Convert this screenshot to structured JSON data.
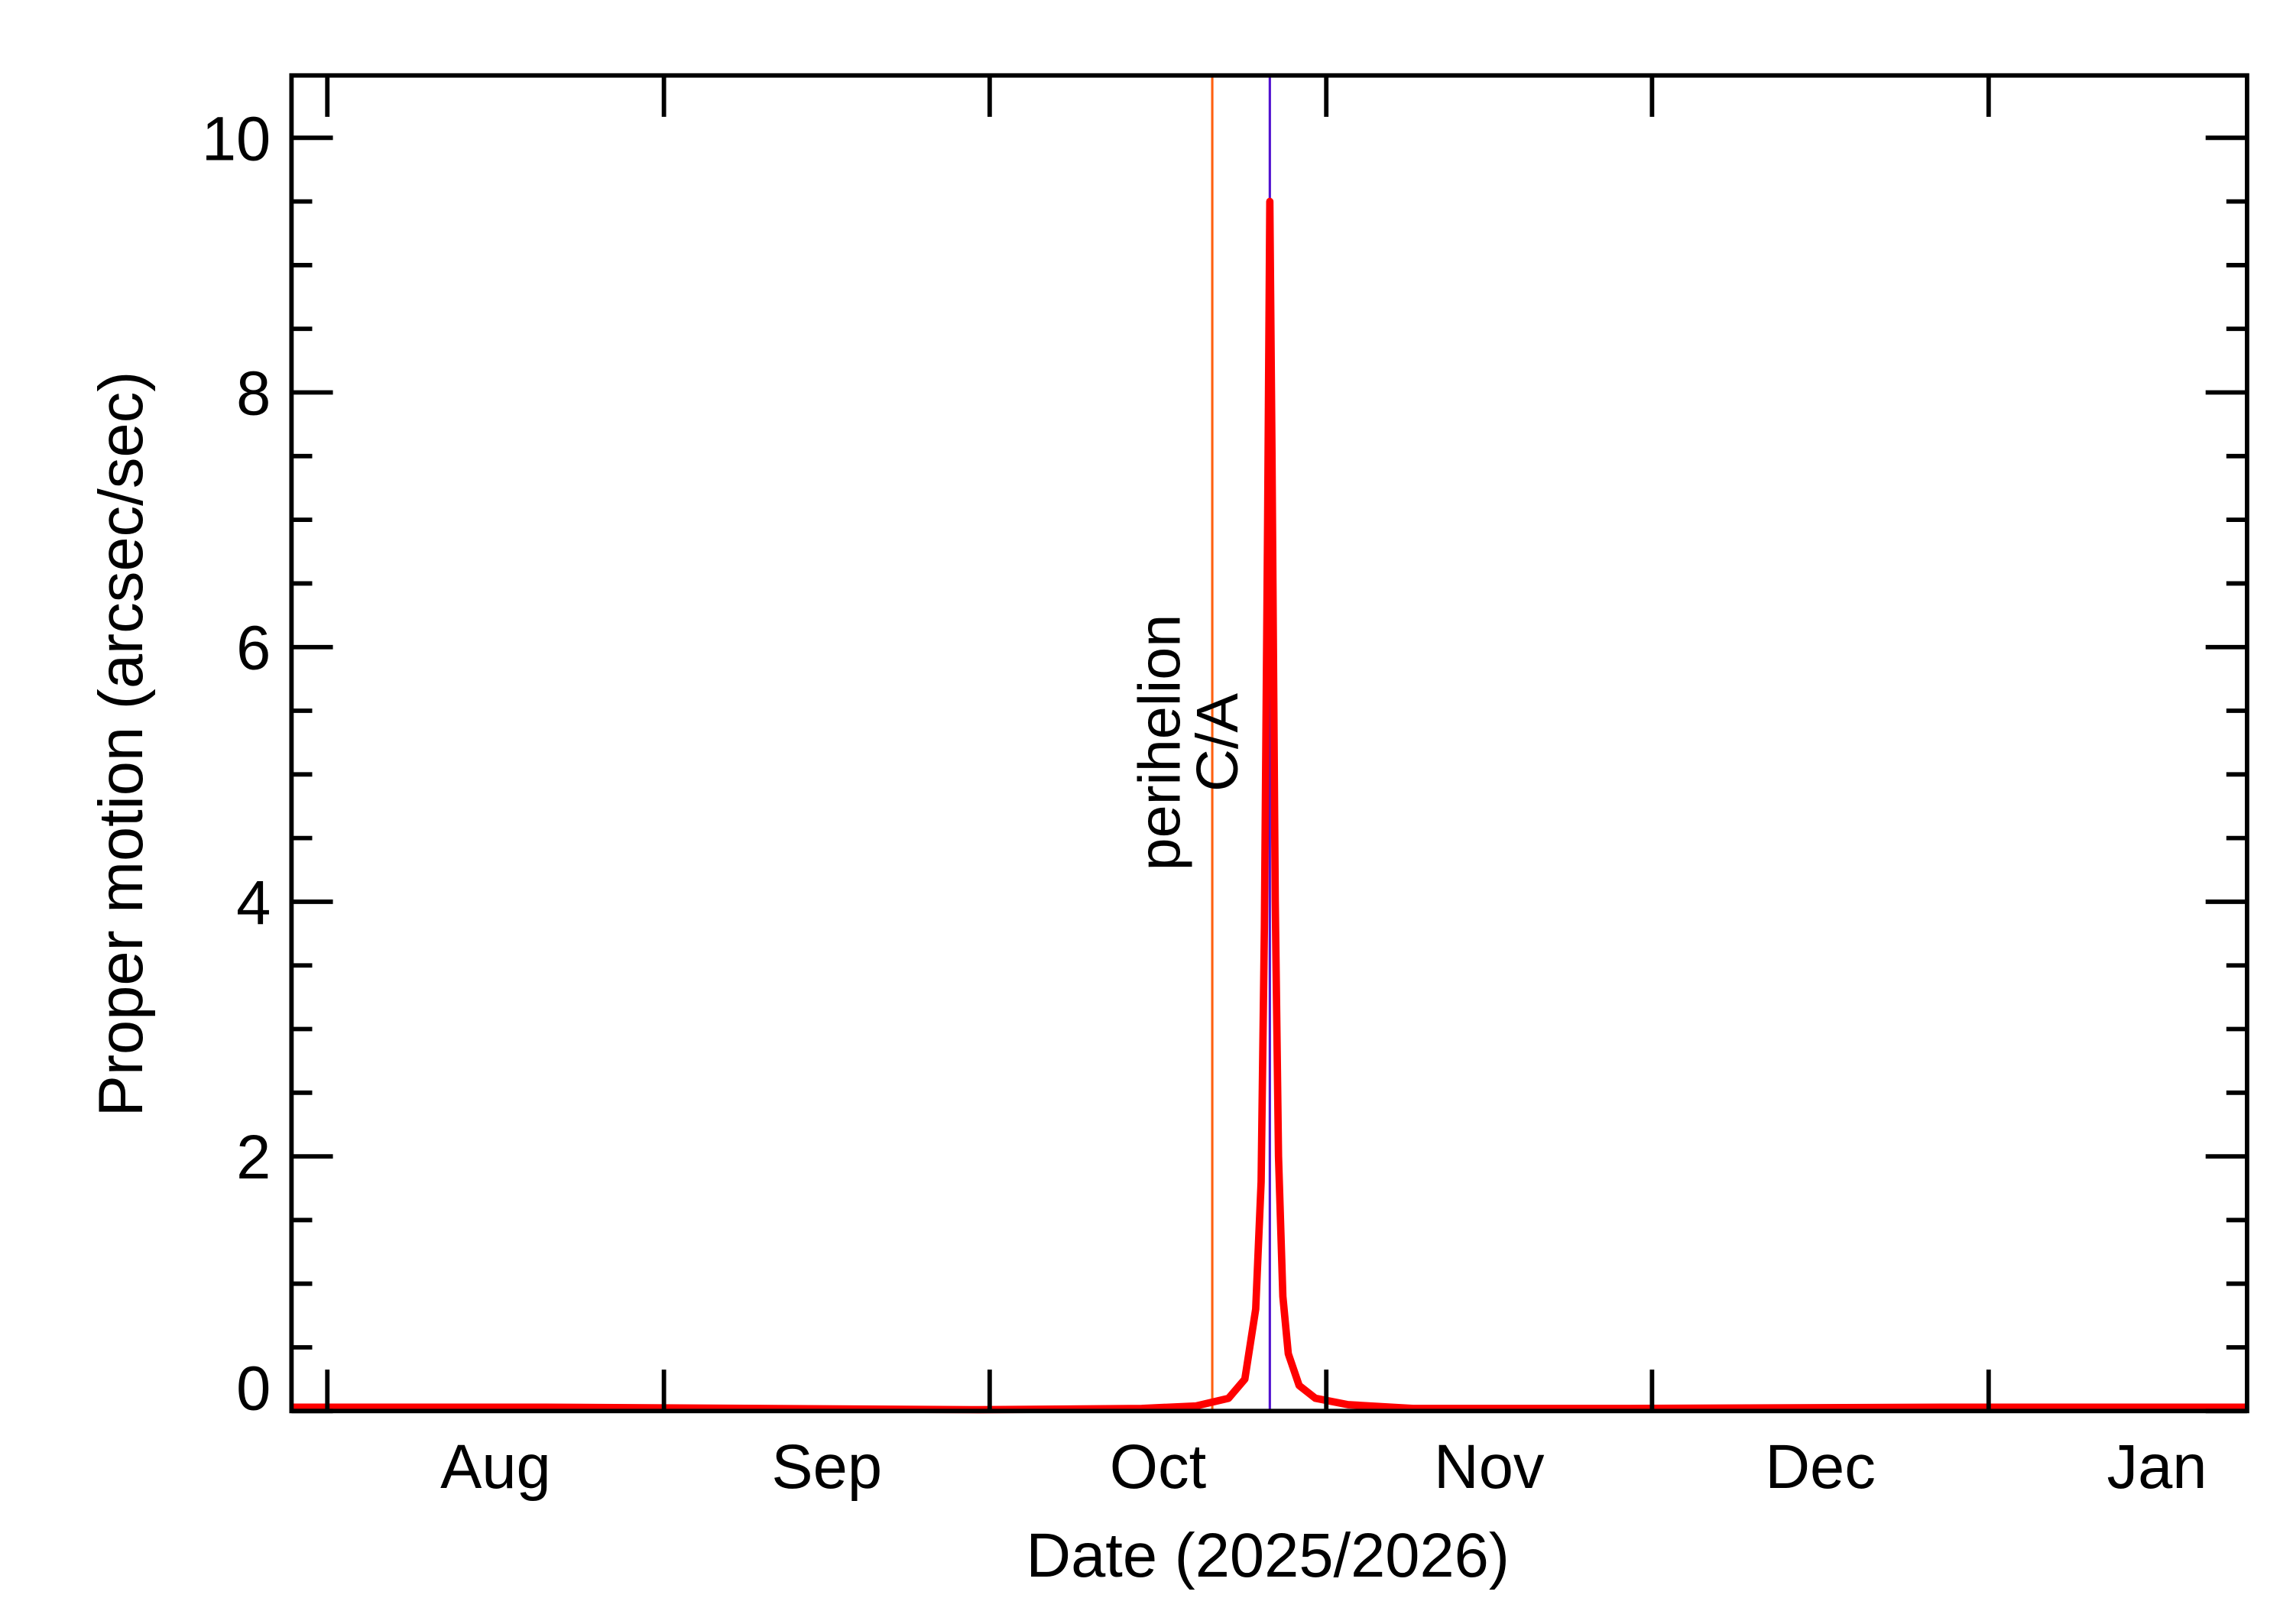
{
  "chart_data": {
    "type": "line",
    "xlabel": "Date (2025/2026)",
    "ylabel": "Proper motion (arcsec/sec)",
    "x": [
      -3.3,
      20,
      40,
      60,
      75,
      80,
      83,
      84.5,
      85.5,
      86,
      86.3,
      86.6,
      86.8,
      87.0,
      87.3,
      87.6,
      88,
      88.5,
      89.5,
      91,
      94,
      100,
      120,
      150,
      176.8
    ],
    "series": [
      {
        "color": "#ff0000",
        "values": [
          0.03,
          0.03,
          0.02,
          0.01,
          0.02,
          0.04,
          0.1,
          0.25,
          0.8,
          1.8,
          3.8,
          7.0,
          9.5,
          7.5,
          4.0,
          2.0,
          0.9,
          0.45,
          0.2,
          0.1,
          0.05,
          0.02,
          0.02,
          0.03,
          0.03
        ]
      }
    ],
    "xlim": [
      -3.3,
      176.8
    ],
    "xticks": [
      {
        "value": 0,
        "label": "Aug"
      },
      {
        "value": 31,
        "label": "Sep"
      },
      {
        "value": 61,
        "label": "Oct"
      },
      {
        "value": 92,
        "label": "Nov"
      },
      {
        "value": 122,
        "label": "Dec"
      },
      {
        "value": 153,
        "label": "Jan"
      }
    ],
    "ylim": [
      0,
      10.49
    ],
    "yticks": [
      0,
      2,
      4,
      6,
      8,
      10
    ],
    "yminorticks": [
      0.5,
      1,
      1.5,
      2.5,
      3,
      3.5,
      4.5,
      5,
      5.5,
      6.5,
      7,
      7.5,
      8.5,
      9,
      9.5
    ],
    "markers": [
      {
        "label": "perihelion",
        "x": 81.5,
        "color": "#ff6010"
      },
      {
        "label": "C/A",
        "x": 86.8,
        "color": "#5010d0"
      }
    ]
  }
}
